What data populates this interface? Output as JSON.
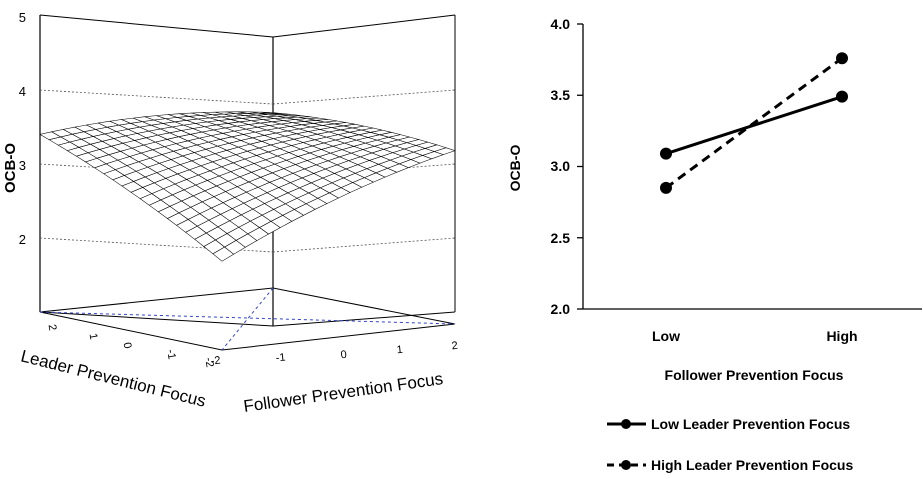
{
  "chart_data": [
    {
      "type": "surface",
      "zlabel": "OCB-O",
      "xlabel": "Leader Prevention Focus",
      "ylabel": "Follower Prevention Focus",
      "z_ticks": [
        "2",
        "3",
        "4",
        "5"
      ],
      "leader_ticks": [
        "2",
        "1",
        "0",
        "-1",
        "-2"
      ],
      "follower_ticks": [
        "-2",
        "-1",
        "0",
        "1",
        "2"
      ],
      "zlim": [
        1,
        5
      ],
      "xlim": [
        -2,
        2
      ],
      "ylim": [
        -2,
        2
      ]
    },
    {
      "type": "line",
      "categories": [
        "Low",
        "High"
      ],
      "xlabel": "Follower Prevention Focus",
      "ylabel": "OCB-O",
      "ylim": [
        2.0,
        4.0
      ],
      "y_ticks": [
        "2.0",
        "2.5",
        "3.0",
        "3.5",
        "4.0"
      ],
      "series": [
        {
          "name": "Low Leader Prevention Focus",
          "values": [
            3.09,
            3.49
          ],
          "style": "solid"
        },
        {
          "name": "High Leader Prevention Focus",
          "values": [
            2.85,
            3.76
          ],
          "style": "dashed"
        }
      ]
    }
  ]
}
